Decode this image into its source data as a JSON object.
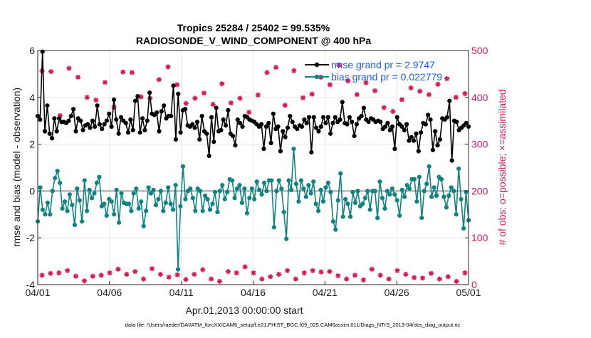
{
  "chart_data": {
    "type": "line",
    "title_line1": "Tropics 25284 / 25402 = 99.535%",
    "title_line2": "RADIOSONDE_V_WIND_COMPONENT @ 400 hPa",
    "xlabel": "Apr.01,2013 00:00:00 start",
    "ylabel_left": "rmse and bias (model - observation)",
    "ylabel_right": "# of obs: o=possible; ×=assimilated",
    "footer": "data file: /Users/raeder/DAI/ATM_forcXX/CAM6_setup/f.e21.FHIST_BGC.f09_025.CAM6assim.011/Diags_NTrS_2013-04/obs_diag_output.nc",
    "x_ticks": [
      "04/01",
      "04/06",
      "04/11",
      "04/16",
      "04/21",
      "04/26",
      "05/01"
    ],
    "x_range_days": [
      0,
      30
    ],
    "ylim_left": [
      -4,
      6
    ],
    "y_ticks_left": [
      "-4",
      "-2",
      "0",
      "2",
      "4",
      "6"
    ],
    "ylim_right": [
      0,
      500
    ],
    "y_ticks_right": [
      "0",
      "100",
      "200",
      "300",
      "400",
      "500"
    ],
    "legend": [
      {
        "label": "rmse grand pr = 2.9747",
        "color": "#000000"
      },
      {
        "label": "bias grand pr = 0.022779",
        "color": "#0f8282"
      }
    ],
    "colors": {
      "rmse": "#000000",
      "bias": "#0f8282",
      "obs": "#d6185a",
      "legend_text": "#1a5cff",
      "zero_line": "#bfbfbf",
      "grid": "#e6e6e6"
    },
    "series": [
      {
        "name": "rmse",
        "values": [
          3.2,
          3.05,
          5.95,
          2.55,
          3.65,
          2.45,
          2.25,
          3.1,
          2.55,
          3.1,
          2.95,
          2.95,
          2.9,
          3.0,
          3.2,
          3.5,
          2.55,
          3.1,
          3.0,
          2.6,
          2.8,
          2.85,
          2.7,
          3.0,
          2.75,
          3.65,
          2.85,
          2.65,
          2.85,
          3.0,
          3.3,
          2.75,
          3.9,
          3.05,
          2.45,
          3.15,
          3.0,
          2.9,
          2.5,
          3.05,
          2.6,
          3.85,
          4.05,
          2.5,
          3.1,
          2.6,
          3.0,
          4.2,
          3.3,
          3.25,
          3.35,
          2.55,
          3.4,
          3.65,
          3.1,
          3.2,
          3.2,
          4.5,
          2.2,
          4.15,
          2.5,
          3.45,
          3.5,
          2.8,
          2.75,
          2.85,
          2.7,
          2.95,
          2.2,
          3.2,
          2.55,
          2.45,
          1.5,
          3.15,
          2.1,
          3.55,
          2.55,
          2.6,
          3.05,
          2.8,
          3.45,
          2.45,
          2.35,
          1.95,
          3.05,
          2.9,
          2.75,
          3.2,
          3.15,
          3.05,
          3.0,
          2.95,
          2.85,
          2.75,
          2.85,
          1.8,
          2.75,
          2.9,
          2.05,
          3.3,
          2.65,
          2.75,
          1.7,
          2.55,
          2.3,
          2.7,
          3.2,
          2.95,
          2.75,
          2.65,
          2.8,
          2.75,
          3.05,
          2.9,
          3.15,
          1.65,
          3.15,
          2.7,
          2.55,
          2.75,
          3.15,
          2.9,
          3.15,
          2.45,
          2.9,
          3.15,
          2.95,
          3.05,
          3.8,
          2.9,
          2.85,
          3.15,
          2.95,
          2.35,
          2.85,
          3.1,
          3.2,
          3.55,
          3.05,
          2.95,
          3.1,
          3.05,
          2.95,
          3.0,
          2.95,
          2.65,
          2.75,
          2.9,
          2.6,
          2.75,
          1.8,
          3.15,
          2.85,
          2.75,
          2.6,
          2.85,
          2.15,
          2.3,
          2.15,
          2.45,
          1.7,
          2.5,
          2.9,
          2.85,
          3.25,
          3.05,
          1.75,
          2.55,
          1.95,
          2.2,
          3.1,
          3.05,
          3.15,
          3.85,
          1.3,
          3.0,
          2.95,
          2.6,
          2.7,
          2.8,
          2.9,
          2.75
        ]
      },
      {
        "name": "bias",
        "values": [
          -1.3,
          0.15,
          -0.8,
          -1.0,
          -0.5,
          -1.0,
          0.0,
          0.55,
          0.85,
          0.35,
          -0.75,
          -0.45,
          -0.85,
          -0.15,
          -0.6,
          -1.45,
          0.1,
          -0.4,
          -1.3,
          0.45,
          -0.85,
          0.05,
          -0.3,
          -0.1,
          0.35,
          0.6,
          -0.65,
          -0.55,
          -1.05,
          -0.35,
          -0.45,
          -1.0,
          0.05,
          -1.35,
          -0.1,
          -0.5,
          -0.55,
          -0.55,
          -0.85,
          -0.1,
          0.1,
          -0.75,
          -0.45,
          -1.5,
          -0.85,
          0.15,
          -0.1,
          0.05,
          -0.6,
          -0.35,
          0.0,
          -0.85,
          -0.5,
          0.15,
          -0.55,
          -0.8,
          0.25,
          -3.35,
          -0.65,
          1.05,
          -0.35,
          0.0,
          0.1,
          -0.3,
          -0.85,
          0.1,
          0.0,
          -0.85,
          -0.2,
          -0.35,
          -0.8,
          -0.55,
          -0.05,
          -0.9,
          0.0,
          0.25,
          -0.35,
          -0.05,
          0.5,
          0.45,
          -0.3,
          0.1,
          0.25,
          -0.5,
          0.1,
          -0.95,
          -0.3,
          0.1,
          -0.35,
          0.4,
          0.05,
          -0.15,
          0.35,
          0.0,
          0.45,
          0.45,
          -1.55,
          0.0,
          0.45,
          0.1,
          -0.9,
          -2.05,
          0.45,
          0.05,
          1.8,
          0.3,
          -0.45,
          0.45,
          0.1,
          -0.25,
          0.25,
          -0.1,
          0.4,
          -0.55,
          -0.85,
          0.05,
          -0.45,
          0.15,
          0.35,
          -0.05,
          -1.3,
          -1.65,
          -0.4,
          0.75,
          -1.1,
          -0.35,
          -0.55,
          -1.1,
          -0.05,
          -0.5,
          0.0,
          -0.65,
          -0.55,
          -0.3,
          0.0,
          -0.8,
          0.0,
          0.0,
          -1.15,
          0.4,
          -0.3,
          -0.75,
          0.0,
          -0.15,
          0.1,
          -0.15,
          -0.4,
          -1.05,
          0.05,
          -0.25,
          0.25,
          0.1,
          0.5,
          0.5,
          -0.45,
          0.6,
          -1.15,
          0.0,
          0.3,
          1.05,
          -0.25,
          0.15,
          -0.2,
          0.6,
          0.5,
          -0.25,
          -0.7,
          -0.2,
          0.15,
          0.0,
          -1.0,
          0.95,
          -0.35,
          -1.6,
          -0.05,
          -1.25
        ]
      },
      {
        "name": "obs_possible_upper",
        "values": [
          456,
          455,
          361,
          462,
          443,
          400,
          394,
          432,
          379,
          454,
          453,
          401,
          398,
          438,
          465,
          427,
          387,
          398,
          409,
          385,
          429,
          388,
          398,
          368,
          405,
          453,
          464,
          383,
          457,
          399,
          407,
          443,
          427,
          469,
          435,
          406,
          431,
          414,
          378,
          370,
          395,
          420,
          413,
          406,
          428,
          440,
          400,
          408
        ]
      },
      {
        "name": "obs_possible_lower",
        "values": [
          20,
          24,
          25,
          30,
          18,
          8,
          18,
          20,
          25,
          33,
          22,
          28,
          12,
          34,
          22,
          16,
          21,
          11,
          22,
          32,
          12,
          7,
          28,
          25,
          38,
          25,
          12,
          17,
          22,
          30,
          12,
          25,
          30,
          27,
          28,
          19,
          12,
          20,
          10,
          33,
          20,
          12,
          30,
          22,
          15,
          14,
          24,
          12,
          17,
          7,
          25
        ]
      }
    ]
  }
}
